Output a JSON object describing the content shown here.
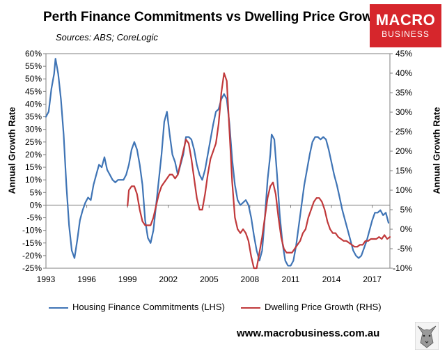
{
  "title": "Perth Finance Commitments vs Dwelling Price Growth",
  "subtitle": "Sources: ABS; CoreLogic",
  "logo": {
    "line1": "MACRO",
    "line2": "BUSINESS",
    "color": "#d6262c"
  },
  "website": "www.macrobusiness.com.au",
  "chart_data": {
    "type": "line",
    "xlabel": "",
    "ylabel_left": "Annual Growth Rate",
    "ylabel_right": "Annual Growth Rate",
    "xlim": [
      1993,
      2018.3
    ],
    "ylim_left": [
      -25,
      60
    ],
    "ylim_right": [
      -10,
      45
    ],
    "x_ticks": [
      "1993",
      "1996",
      "1999",
      "2002",
      "2005",
      "2008",
      "2011",
      "2014",
      "2017"
    ],
    "y_ticks_left": [
      "60%",
      "55%",
      "50%",
      "45%",
      "40%",
      "35%",
      "30%",
      "25%",
      "20%",
      "15%",
      "10%",
      "5%",
      "0%",
      "-5%",
      "-10%",
      "-15%",
      "-20%",
      "-25%"
    ],
    "y_ticks_right": [
      "45%",
      "40%",
      "35%",
      "30%",
      "25%",
      "20%",
      "15%",
      "10%",
      "5%",
      "0%",
      "-5%",
      "-10%"
    ],
    "grid": false,
    "legend_position": "bottom",
    "series": [
      {
        "name": "Housing Finance Commitments (LHS)",
        "axis": "left",
        "color": "#3f74b5",
        "points": [
          [
            1993.0,
            35
          ],
          [
            1993.2,
            37
          ],
          [
            1993.4,
            46
          ],
          [
            1993.6,
            52
          ],
          [
            1993.7,
            58
          ],
          [
            1993.9,
            52
          ],
          [
            1994.1,
            42
          ],
          [
            1994.3,
            28
          ],
          [
            1994.5,
            8
          ],
          [
            1994.7,
            -8
          ],
          [
            1994.9,
            -18
          ],
          [
            1995.1,
            -21
          ],
          [
            1995.3,
            -14
          ],
          [
            1995.5,
            -6
          ],
          [
            1995.7,
            -2
          ],
          [
            1995.9,
            1
          ],
          [
            1996.1,
            3
          ],
          [
            1996.3,
            2
          ],
          [
            1996.5,
            8
          ],
          [
            1996.7,
            12
          ],
          [
            1996.9,
            16
          ],
          [
            1997.1,
            15
          ],
          [
            1997.3,
            19
          ],
          [
            1997.5,
            14
          ],
          [
            1997.7,
            12
          ],
          [
            1997.9,
            10
          ],
          [
            1998.1,
            9
          ],
          [
            1998.3,
            10
          ],
          [
            1998.5,
            10
          ],
          [
            1998.7,
            10
          ],
          [
            1998.9,
            12
          ],
          [
            1999.1,
            16
          ],
          [
            1999.3,
            22
          ],
          [
            1999.5,
            25
          ],
          [
            1999.7,
            22
          ],
          [
            1999.9,
            16
          ],
          [
            2000.1,
            8
          ],
          [
            2000.3,
            -6
          ],
          [
            2000.5,
            -13
          ],
          [
            2000.7,
            -15
          ],
          [
            2000.9,
            -10
          ],
          [
            2001.1,
            0
          ],
          [
            2001.3,
            10
          ],
          [
            2001.5,
            20
          ],
          [
            2001.7,
            33
          ],
          [
            2001.9,
            37
          ],
          [
            2002.1,
            28
          ],
          [
            2002.3,
            20
          ],
          [
            2002.5,
            17
          ],
          [
            2002.7,
            12
          ],
          [
            2002.9,
            16
          ],
          [
            2003.1,
            20
          ],
          [
            2003.3,
            27
          ],
          [
            2003.5,
            27
          ],
          [
            2003.7,
            26
          ],
          [
            2003.9,
            22
          ],
          [
            2004.1,
            16
          ],
          [
            2004.3,
            12
          ],
          [
            2004.5,
            10
          ],
          [
            2004.7,
            14
          ],
          [
            2004.9,
            20
          ],
          [
            2005.1,
            26
          ],
          [
            2005.3,
            32
          ],
          [
            2005.5,
            37
          ],
          [
            2005.7,
            38
          ],
          [
            2005.9,
            42
          ],
          [
            2006.1,
            44
          ],
          [
            2006.3,
            42
          ],
          [
            2006.5,
            32
          ],
          [
            2006.7,
            18
          ],
          [
            2006.9,
            8
          ],
          [
            2007.1,
            2
          ],
          [
            2007.3,
            0
          ],
          [
            2007.5,
            1
          ],
          [
            2007.7,
            2
          ],
          [
            2007.9,
            0
          ],
          [
            2008.1,
            -5
          ],
          [
            2008.3,
            -12
          ],
          [
            2008.5,
            -18
          ],
          [
            2008.7,
            -22
          ],
          [
            2008.9,
            -18
          ],
          [
            2009.1,
            -5
          ],
          [
            2009.3,
            10
          ],
          [
            2009.5,
            20
          ],
          [
            2009.6,
            28
          ],
          [
            2009.8,
            26
          ],
          [
            2010.0,
            12
          ],
          [
            2010.2,
            -4
          ],
          [
            2010.4,
            -15
          ],
          [
            2010.6,
            -22
          ],
          [
            2010.8,
            -24
          ],
          [
            2011.0,
            -24
          ],
          [
            2011.2,
            -22
          ],
          [
            2011.4,
            -16
          ],
          [
            2011.6,
            -8
          ],
          [
            2011.8,
            0
          ],
          [
            2012.0,
            8
          ],
          [
            2012.2,
            14
          ],
          [
            2012.4,
            20
          ],
          [
            2012.6,
            25
          ],
          [
            2012.8,
            27
          ],
          [
            2013.0,
            27
          ],
          [
            2013.2,
            26
          ],
          [
            2013.4,
            27
          ],
          [
            2013.6,
            26
          ],
          [
            2013.8,
            22
          ],
          [
            2014.0,
            17
          ],
          [
            2014.2,
            12
          ],
          [
            2014.4,
            8
          ],
          [
            2014.6,
            3
          ],
          [
            2014.8,
            -2
          ],
          [
            2015.0,
            -6
          ],
          [
            2015.2,
            -10
          ],
          [
            2015.4,
            -14
          ],
          [
            2015.6,
            -18
          ],
          [
            2015.8,
            -20
          ],
          [
            2016.0,
            -21
          ],
          [
            2016.2,
            -20
          ],
          [
            2016.4,
            -17
          ],
          [
            2016.6,
            -14
          ],
          [
            2016.8,
            -10
          ],
          [
            2017.0,
            -6
          ],
          [
            2017.2,
            -3
          ],
          [
            2017.4,
            -3
          ],
          [
            2017.6,
            -2
          ],
          [
            2017.8,
            -4
          ],
          [
            2018.0,
            -3
          ],
          [
            2018.2,
            -7
          ]
        ]
      },
      {
        "name": "Dwelling Price Growth (RHS)",
        "axis": "right",
        "color": "#c0393b",
        "points": [
          [
            1999.0,
            6
          ],
          [
            1999.1,
            10
          ],
          [
            1999.3,
            11
          ],
          [
            1999.5,
            11
          ],
          [
            1999.7,
            9
          ],
          [
            1999.9,
            5
          ],
          [
            2000.1,
            2
          ],
          [
            2000.3,
            1
          ],
          [
            2000.5,
            1
          ],
          [
            2000.7,
            1
          ],
          [
            2000.9,
            3
          ],
          [
            2001.1,
            6
          ],
          [
            2001.3,
            9
          ],
          [
            2001.5,
            11
          ],
          [
            2001.7,
            12
          ],
          [
            2001.9,
            13
          ],
          [
            2002.1,
            14
          ],
          [
            2002.3,
            14
          ],
          [
            2002.5,
            13
          ],
          [
            2002.7,
            14
          ],
          [
            2002.9,
            17
          ],
          [
            2003.1,
            20
          ],
          [
            2003.3,
            23
          ],
          [
            2003.5,
            22
          ],
          [
            2003.7,
            18
          ],
          [
            2003.9,
            13
          ],
          [
            2004.1,
            8
          ],
          [
            2004.3,
            5
          ],
          [
            2004.5,
            5
          ],
          [
            2004.7,
            9
          ],
          [
            2004.9,
            14
          ],
          [
            2005.1,
            18
          ],
          [
            2005.3,
            20
          ],
          [
            2005.5,
            22
          ],
          [
            2005.7,
            27
          ],
          [
            2005.9,
            35
          ],
          [
            2006.1,
            40
          ],
          [
            2006.3,
            38
          ],
          [
            2006.5,
            25
          ],
          [
            2006.7,
            12
          ],
          [
            2006.9,
            3
          ],
          [
            2007.1,
            0
          ],
          [
            2007.3,
            -1
          ],
          [
            2007.5,
            0
          ],
          [
            2007.7,
            -1
          ],
          [
            2007.9,
            -3
          ],
          [
            2008.1,
            -7
          ],
          [
            2008.3,
            -10
          ],
          [
            2008.5,
            -10
          ],
          [
            2008.7,
            -6
          ],
          [
            2008.9,
            -2
          ],
          [
            2009.1,
            3
          ],
          [
            2009.3,
            8
          ],
          [
            2009.5,
            11
          ],
          [
            2009.7,
            12
          ],
          [
            2009.9,
            9
          ],
          [
            2010.1,
            3
          ],
          [
            2010.3,
            -2
          ],
          [
            2010.5,
            -5
          ],
          [
            2010.7,
            -6
          ],
          [
            2010.9,
            -6
          ],
          [
            2011.1,
            -6
          ],
          [
            2011.3,
            -5
          ],
          [
            2011.5,
            -4
          ],
          [
            2011.7,
            -3
          ],
          [
            2011.9,
            -1
          ],
          [
            2012.1,
            0
          ],
          [
            2012.3,
            3
          ],
          [
            2012.5,
            5
          ],
          [
            2012.7,
            7
          ],
          [
            2012.9,
            8
          ],
          [
            2013.1,
            8
          ],
          [
            2013.3,
            7
          ],
          [
            2013.5,
            5
          ],
          [
            2013.7,
            2
          ],
          [
            2013.9,
            0
          ],
          [
            2014.1,
            -1
          ],
          [
            2014.3,
            -1
          ],
          [
            2014.5,
            -2
          ],
          [
            2014.7,
            -2.5
          ],
          [
            2014.9,
            -3
          ],
          [
            2015.1,
            -3
          ],
          [
            2015.3,
            -3.5
          ],
          [
            2015.5,
            -4
          ],
          [
            2015.7,
            -4.5
          ],
          [
            2015.9,
            -4.5
          ],
          [
            2016.1,
            -4
          ],
          [
            2016.3,
            -4
          ],
          [
            2016.5,
            -3
          ],
          [
            2016.7,
            -3
          ],
          [
            2016.9,
            -2.5
          ],
          [
            2017.1,
            -2.5
          ],
          [
            2017.3,
            -2.5
          ],
          [
            2017.5,
            -2
          ],
          [
            2017.7,
            -2.5
          ],
          [
            2017.9,
            -1.5
          ],
          [
            2018.1,
            -2.5
          ],
          [
            2018.3,
            -2
          ]
        ]
      }
    ]
  }
}
